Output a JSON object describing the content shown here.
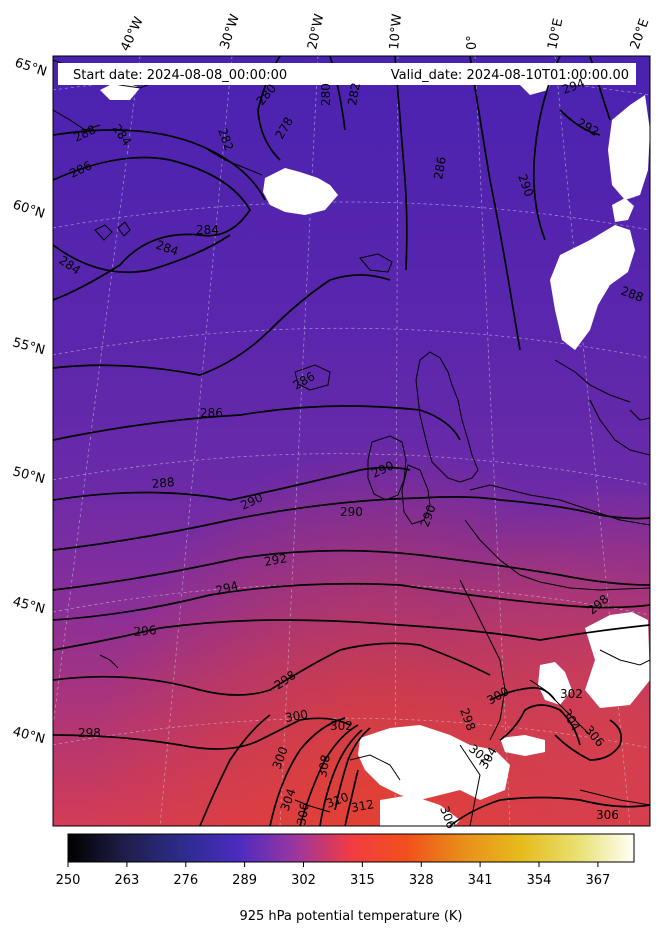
{
  "header": {
    "start_date": "Start date: 2024-08-08_00:00:00",
    "valid_date": "Valid_date: 2024-08-10T01:00:00.00"
  },
  "lon_labels": [
    "40°W",
    "30°W",
    "20°W",
    "10°W",
    "0°",
    "10°E",
    "20°E"
  ],
  "lat_labels": [
    "65°N",
    "60°N",
    "55°N",
    "50°N",
    "45°N",
    "40°N"
  ],
  "contour_labels": [
    "280",
    "278",
    "280",
    "282",
    "284",
    "282",
    "288",
    "286",
    "284",
    "284",
    "284",
    "286",
    "288",
    "286",
    "290",
    "290",
    "290",
    "290",
    "292",
    "294",
    "296",
    "298",
    "298",
    "300",
    "300",
    "302",
    "304",
    "306",
    "308",
    "310",
    "312",
    "306",
    "300",
    "302",
    "304",
    "306",
    "298",
    "302",
    "304",
    "290",
    "292",
    "294",
    "298",
    "306",
    "288",
    "286"
  ],
  "colorbar": {
    "title": "925 hPa potential temperature (K)",
    "ticks": [
      "250",
      "263",
      "276",
      "289",
      "302",
      "315",
      "328",
      "341",
      "354",
      "367"
    ],
    "vmin": 250,
    "vmax": 375,
    "colormap": "CMRmap",
    "colors": [
      "#000000",
      "#26265c",
      "#3d2ab5",
      "#7330b0",
      "#c43c6a",
      "#f5402a",
      "#e8761a",
      "#e6ad10",
      "#e7d84a",
      "#fffffd"
    ]
  },
  "map": {
    "projection": "conic",
    "field_colors": {
      "north": "#4a22b0",
      "mid": "#6a2aa8",
      "south": "#c0386c",
      "hot": "#e04046"
    },
    "coastline_color": "#000000",
    "contour_color": "#000000",
    "graticule_color": "#bbbbbb"
  }
}
